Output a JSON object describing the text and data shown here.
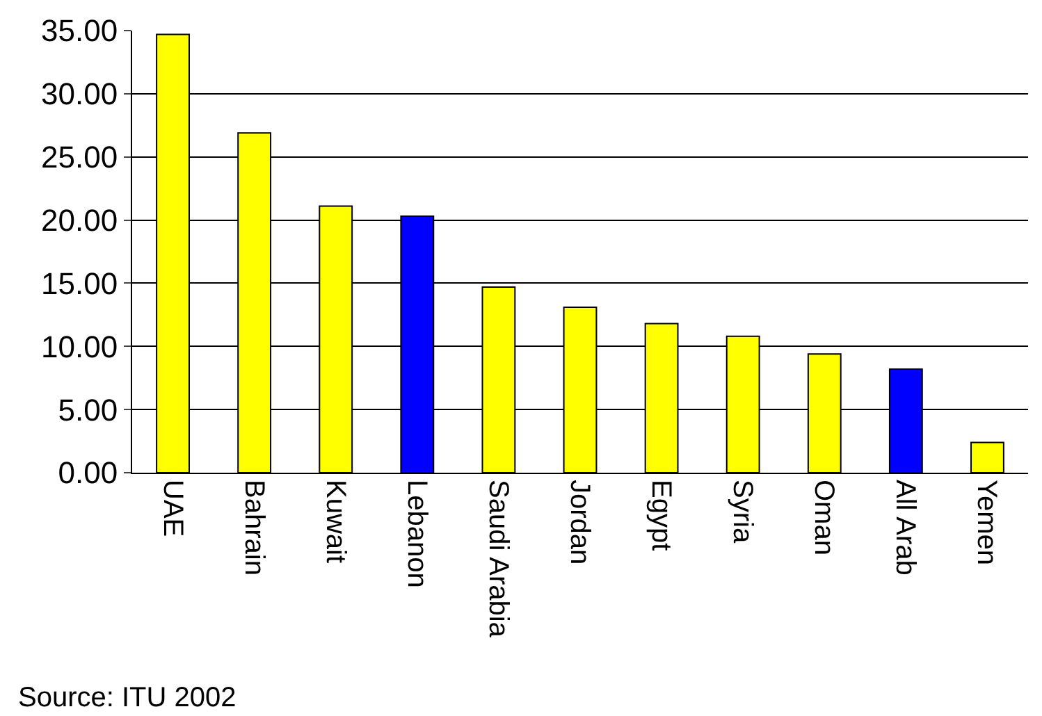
{
  "chart_data": {
    "type": "bar",
    "categories": [
      "UAE",
      "Bahrain",
      "Kuwait",
      "Lebanon",
      "Saudi Arabia",
      "Jordan",
      "Egypt",
      "Syria",
      "Oman",
      "All Arab",
      "Yemen"
    ],
    "values": [
      34.7,
      26.9,
      21.1,
      20.3,
      14.7,
      13.1,
      11.8,
      10.8,
      9.4,
      8.2,
      2.4
    ],
    "colors": [
      "#ffff00",
      "#ffff00",
      "#ffff00",
      "#0000ff",
      "#ffff00",
      "#ffff00",
      "#ffff00",
      "#ffff00",
      "#ffff00",
      "#0000ff",
      "#ffff00"
    ],
    "ylim": [
      0,
      35
    ],
    "yticks": [
      {
        "value": 0,
        "label": "0.00"
      },
      {
        "value": 5,
        "label": "5.00"
      },
      {
        "value": 10,
        "label": "10.00"
      },
      {
        "value": 15,
        "label": "15.00"
      },
      {
        "value": 20,
        "label": "20.00"
      },
      {
        "value": 25,
        "label": "25.00"
      },
      {
        "value": 30,
        "label": "30.00"
      },
      {
        "value": 35,
        "label": "35.00"
      }
    ],
    "grid": "y",
    "annotations": [
      "Source: ITU 2002"
    ]
  }
}
